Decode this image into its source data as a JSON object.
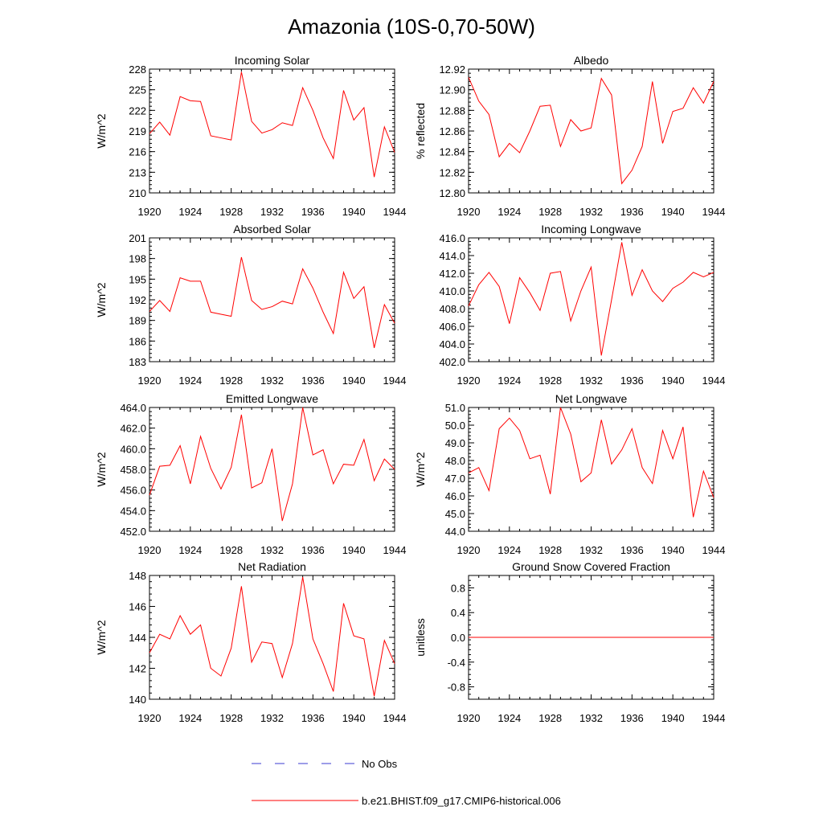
{
  "figure": {
    "title": "Amazonia (10S-0,70-50W)"
  },
  "colors": {
    "model": "#ff0000",
    "obs": "#3b3bd0",
    "axis": "#000000"
  },
  "legend": {
    "obs_label": "No Obs",
    "model_label": "b.e21.BHIST.f09_g17.CMIP6-historical.006"
  },
  "chart_data": [
    {
      "type": "line",
      "title": "Incoming Solar",
      "ylabel": "W/m^2",
      "xlim": [
        1920,
        1944
      ],
      "ylim": [
        210,
        228
      ],
      "xticks": [
        "1920",
        "1924",
        "1928",
        "1932",
        "1936",
        "1940",
        "1944"
      ],
      "yticks": [
        "210",
        "213",
        "216",
        "219",
        "222",
        "225",
        "228"
      ],
      "x": [
        1920,
        1921,
        1922,
        1923,
        1924,
        1925,
        1926,
        1927,
        1928,
        1929,
        1930,
        1931,
        1932,
        1933,
        1934,
        1935,
        1936,
        1937,
        1938,
        1939,
        1940,
        1941,
        1942,
        1943,
        1944
      ],
      "series": [
        {
          "name": "b.e21.BHIST.f09_g17.CMIP6-historical.006",
          "values": [
            218.6,
            220.3,
            218.4,
            224.0,
            223.4,
            223.3,
            218.3,
            218.0,
            217.7,
            227.6,
            220.4,
            218.7,
            219.2,
            220.2,
            219.8,
            225.3,
            222.0,
            218.0,
            215.0,
            224.9,
            220.6,
            222.4,
            212.3,
            219.6,
            215.9
          ]
        }
      ]
    },
    {
      "type": "line",
      "title": "Albedo",
      "ylabel": "% reflected",
      "xlim": [
        1920,
        1944
      ],
      "ylim": [
        12.8,
        12.92
      ],
      "xticks": [
        "1920",
        "1924",
        "1928",
        "1932",
        "1936",
        "1940",
        "1944"
      ],
      "yticks": [
        "12.80",
        "12.82",
        "12.84",
        "12.86",
        "12.88",
        "12.90",
        "12.92"
      ],
      "x": [
        1920,
        1921,
        1922,
        1923,
        1924,
        1925,
        1926,
        1927,
        1928,
        1929,
        1930,
        1931,
        1932,
        1933,
        1934,
        1935,
        1936,
        1937,
        1938,
        1939,
        1940,
        1941,
        1942,
        1943,
        1944
      ],
      "series": [
        {
          "name": "b.e21.BHIST.f09_g17.CMIP6-historical.006",
          "values": [
            12.912,
            12.889,
            12.876,
            12.835,
            12.848,
            12.839,
            12.86,
            12.884,
            12.885,
            12.845,
            12.871,
            12.86,
            12.863,
            12.911,
            12.895,
            12.809,
            12.822,
            12.845,
            12.908,
            12.848,
            12.879,
            12.882,
            12.902,
            12.887,
            12.908
          ]
        }
      ]
    },
    {
      "type": "line",
      "title": "Absorbed Solar",
      "ylabel": "W/m^2",
      "xlim": [
        1920,
        1944
      ],
      "ylim": [
        183,
        201
      ],
      "xticks": [
        "1920",
        "1924",
        "1928",
        "1932",
        "1936",
        "1940",
        "1944"
      ],
      "yticks": [
        "183",
        "186",
        "189",
        "192",
        "195",
        "198",
        "201"
      ],
      "x": [
        1920,
        1921,
        1922,
        1923,
        1924,
        1925,
        1926,
        1927,
        1928,
        1929,
        1930,
        1931,
        1932,
        1933,
        1934,
        1935,
        1936,
        1937,
        1938,
        1939,
        1940,
        1941,
        1942,
        1943,
        1944
      ],
      "series": [
        {
          "name": "b.e21.BHIST.f09_g17.CMIP6-historical.006",
          "values": [
            190.3,
            191.9,
            190.3,
            195.2,
            194.7,
            194.7,
            190.2,
            189.9,
            189.6,
            198.2,
            191.9,
            190.6,
            191.0,
            191.8,
            191.4,
            196.5,
            193.7,
            190.2,
            187.1,
            196.0,
            192.2,
            193.9,
            185.0,
            191.3,
            188.6
          ]
        }
      ]
    },
    {
      "type": "line",
      "title": "Incoming Longwave",
      "xlim": [
        1920,
        1944
      ],
      "ylim": [
        402.0,
        416.0
      ],
      "xticks": [
        "1920",
        "1924",
        "1928",
        "1932",
        "1936",
        "1940",
        "1944"
      ],
      "yticks": [
        "402.0",
        "404.0",
        "406.0",
        "408.0",
        "410.0",
        "412.0",
        "414.0",
        "416.0"
      ],
      "x": [
        1920,
        1921,
        1922,
        1923,
        1924,
        1925,
        1926,
        1927,
        1928,
        1929,
        1930,
        1931,
        1932,
        1933,
        1934,
        1935,
        1936,
        1937,
        1938,
        1939,
        1940,
        1941,
        1942,
        1943,
        1944
      ],
      "series": [
        {
          "name": "b.e21.BHIST.f09_g17.CMIP6-historical.006",
          "values": [
            408.3,
            410.7,
            412.1,
            410.5,
            406.3,
            411.5,
            409.8,
            407.8,
            412.0,
            412.2,
            406.6,
            410.0,
            412.7,
            402.7,
            409.0,
            415.5,
            409.5,
            412.4,
            410.0,
            408.8,
            410.3,
            411.0,
            412.1,
            411.6,
            412.1
          ]
        }
      ]
    },
    {
      "type": "line",
      "title": "Emitted Longwave",
      "ylabel": "W/m^2",
      "xlim": [
        1920,
        1944
      ],
      "ylim": [
        452.0,
        464.0
      ],
      "xticks": [
        "1920",
        "1924",
        "1928",
        "1932",
        "1936",
        "1940",
        "1944"
      ],
      "yticks": [
        "452.0",
        "454.0",
        "456.0",
        "458.0",
        "460.0",
        "462.0",
        "464.0"
      ],
      "x": [
        1920,
        1921,
        1922,
        1923,
        1924,
        1925,
        1926,
        1927,
        1928,
        1929,
        1930,
        1931,
        1932,
        1933,
        1934,
        1935,
        1936,
        1937,
        1938,
        1939,
        1940,
        1941,
        1942,
        1943,
        1944
      ],
      "series": [
        {
          "name": "b.e21.BHIST.f09_g17.CMIP6-historical.006",
          "values": [
            455.5,
            458.3,
            458.4,
            460.3,
            456.6,
            461.2,
            458.1,
            456.1,
            458.2,
            463.3,
            456.2,
            456.7,
            460.0,
            453.0,
            456.6,
            464.0,
            459.4,
            459.9,
            456.6,
            458.5,
            458.4,
            460.9,
            456.9,
            459.0,
            458.0
          ]
        }
      ]
    },
    {
      "type": "line",
      "title": "Net Longwave",
      "ylabel": "W/m^2",
      "xlim": [
        1920,
        1944
      ],
      "ylim": [
        44.0,
        51.0
      ],
      "xticks": [
        "1920",
        "1924",
        "1928",
        "1932",
        "1936",
        "1940",
        "1944"
      ],
      "yticks": [
        "44.0",
        "45.0",
        "46.0",
        "47.0",
        "48.0",
        "49.0",
        "50.0",
        "51.0"
      ],
      "x": [
        1920,
        1921,
        1922,
        1923,
        1924,
        1925,
        1926,
        1927,
        1928,
        1929,
        1930,
        1931,
        1932,
        1933,
        1934,
        1935,
        1936,
        1937,
        1938,
        1939,
        1940,
        1941,
        1942,
        1943,
        1944
      ],
      "series": [
        {
          "name": "b.e21.BHIST.f09_g17.CMIP6-historical.006",
          "values": [
            47.3,
            47.6,
            46.3,
            49.8,
            50.4,
            49.7,
            48.1,
            48.3,
            46.1,
            51.0,
            49.5,
            46.8,
            47.3,
            50.3,
            47.8,
            48.6,
            49.8,
            47.6,
            46.7,
            49.7,
            48.1,
            49.9,
            44.8,
            47.4,
            45.9
          ]
        }
      ]
    },
    {
      "type": "line",
      "title": "Net Radiation",
      "ylabel": "W/m^2",
      "xlim": [
        1920,
        1944
      ],
      "ylim": [
        140,
        148
      ],
      "xticks": [
        "1920",
        "1924",
        "1928",
        "1932",
        "1936",
        "1940",
        "1944"
      ],
      "yticks": [
        "140",
        "142",
        "144",
        "146",
        "148"
      ],
      "x": [
        1920,
        1921,
        1922,
        1923,
        1924,
        1925,
        1926,
        1927,
        1928,
        1929,
        1930,
        1931,
        1932,
        1933,
        1934,
        1935,
        1936,
        1937,
        1938,
        1939,
        1940,
        1941,
        1942,
        1943,
        1944
      ],
      "series": [
        {
          "name": "b.e21.BHIST.f09_g17.CMIP6-historical.006",
          "values": [
            143.0,
            144.2,
            143.9,
            145.4,
            144.2,
            144.8,
            142.0,
            141.5,
            143.3,
            147.3,
            142.4,
            143.7,
            143.6,
            141.4,
            143.6,
            147.9,
            143.9,
            142.3,
            140.5,
            146.2,
            144.1,
            143.9,
            140.2,
            143.8,
            142.3
          ]
        }
      ]
    },
    {
      "type": "line",
      "title": "Ground Snow Covered Fraction",
      "ylabel": "unitless",
      "xlim": [
        1920,
        1944
      ],
      "ylim": [
        -1.0,
        1.0
      ],
      "xticks": [
        "1920",
        "1924",
        "1928",
        "1932",
        "1936",
        "1940",
        "1944"
      ],
      "yticks": [
        "-0.8",
        "-0.4",
        "0.0",
        "0.4",
        "0.8"
      ],
      "x": [
        1920,
        1921,
        1922,
        1923,
        1924,
        1925,
        1926,
        1927,
        1928,
        1929,
        1930,
        1931,
        1932,
        1933,
        1934,
        1935,
        1936,
        1937,
        1938,
        1939,
        1940,
        1941,
        1942,
        1943,
        1944
      ],
      "series": [
        {
          "name": "b.e21.BHIST.f09_g17.CMIP6-historical.006",
          "values": [
            0,
            0,
            0,
            0,
            0,
            0,
            0,
            0,
            0,
            0,
            0,
            0,
            0,
            0,
            0,
            0,
            0,
            0,
            0,
            0,
            0,
            0,
            0,
            0,
            0
          ]
        }
      ]
    }
  ]
}
